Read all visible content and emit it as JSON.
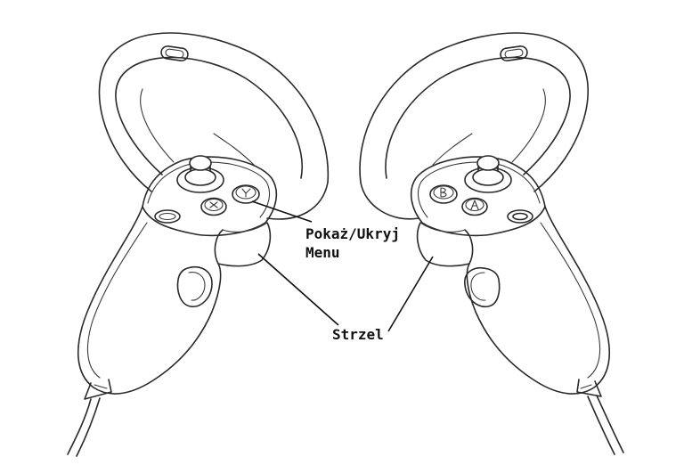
{
  "labels": {
    "menu_line1": "Pokaż/Ukryj",
    "menu_line2": "Menu",
    "shoot": "Strzel"
  },
  "colors": {
    "outline": "#2a2a2a",
    "leader": "#111111",
    "background": "#ffffff"
  },
  "icons": {
    "left_controller": "vr-controller-left-icon",
    "right_controller": "vr-controller-right-icon",
    "menu_button": "menu-button-icon",
    "trigger": "trigger-icon"
  }
}
